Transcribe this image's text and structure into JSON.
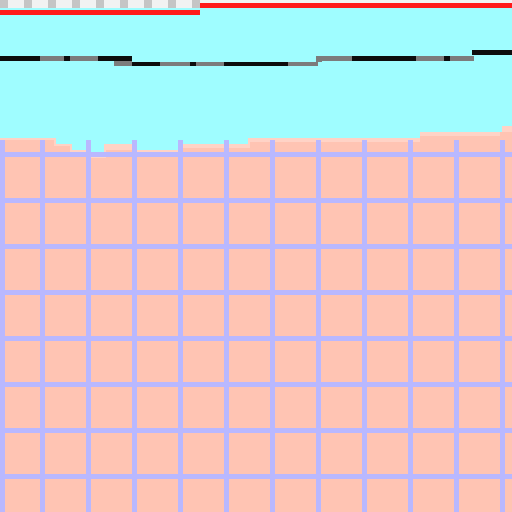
{
  "game": {
    "colors": {
      "sky": "#9ffdff",
      "ground": "#ffc4b3",
      "ground_highlight": "#ffd3c6",
      "grid_lines": "#b9b8ff",
      "top_stripe_light": "#f2f2f2",
      "top_stripe_dark": "#c5c5c5",
      "red_bar": "#ff1a1a",
      "terrain_line": "#0d0d0d",
      "terrain_line_gray": "#7c7c7c"
    }
  }
}
